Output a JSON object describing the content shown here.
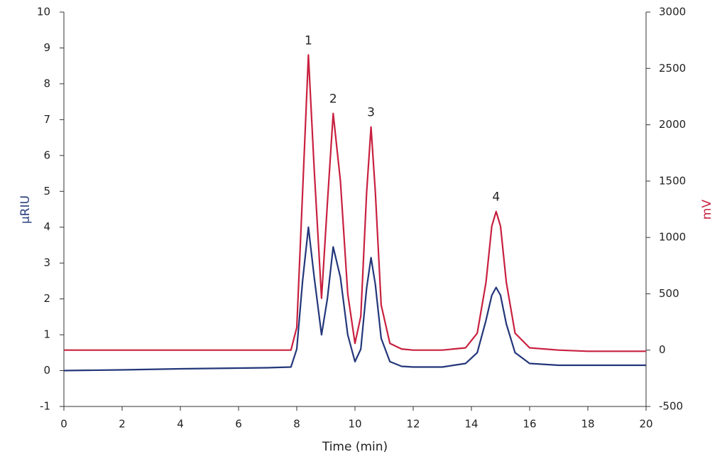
{
  "chart_data": {
    "type": "line",
    "xlabel": "Time (min)",
    "ylabel": "µRIU",
    "y2label": "mV",
    "xlim": [
      0,
      20
    ],
    "xticks": [
      0,
      2,
      4,
      6,
      8,
      10,
      12,
      14,
      16,
      18,
      20
    ],
    "ylim": [
      -1,
      10
    ],
    "yticks": [
      -1,
      0,
      1,
      2,
      3,
      4,
      5,
      6,
      7,
      8,
      9,
      10
    ],
    "y2lim": [
      -500,
      3000
    ],
    "y2ticks": [
      -500,
      0,
      500,
      1000,
      1500,
      2000,
      2500,
      3000
    ],
    "ylabel_color": "#2b3f7e",
    "y2label_color": "#c8203f",
    "x": [
      0,
      2,
      4,
      6,
      7,
      7.8,
      8.0,
      8.2,
      8.4,
      8.6,
      8.85,
      9.05,
      9.25,
      9.5,
      9.75,
      10.0,
      10.2,
      10.4,
      10.55,
      10.7,
      10.9,
      11.2,
      11.6,
      12,
      13,
      13.8,
      14.2,
      14.5,
      14.7,
      14.85,
      15.0,
      15.2,
      15.5,
      16,
      17,
      18,
      20
    ],
    "series": [
      {
        "name": "µRIU",
        "color": "#23377a",
        "values": [
          0,
          0.02,
          0.05,
          0.07,
          0.08,
          0.1,
          0.6,
          2.5,
          4.0,
          2.6,
          1.0,
          2.0,
          3.45,
          2.6,
          1.0,
          0.25,
          0.6,
          2.3,
          3.15,
          2.4,
          0.9,
          0.25,
          0.12,
          0.1,
          0.1,
          0.2,
          0.5,
          1.4,
          2.1,
          2.32,
          2.1,
          1.3,
          0.5,
          0.2,
          0.15,
          0.15,
          0.15
        ]
      },
      {
        "name": "mV",
        "color": "#c8203f",
        "axis": "y2",
        "values": [
          0,
          0,
          0,
          0,
          0,
          0,
          200,
          1400,
          2620,
          1600,
          460,
          1300,
          2100,
          1500,
          500,
          60,
          300,
          1400,
          1980,
          1400,
          400,
          60,
          10,
          0,
          0,
          20,
          150,
          600,
          1100,
          1230,
          1100,
          600,
          150,
          20,
          0,
          -10,
          -10
        ]
      }
    ],
    "annotations": [
      "1",
      "2",
      "3",
      "4"
    ]
  }
}
